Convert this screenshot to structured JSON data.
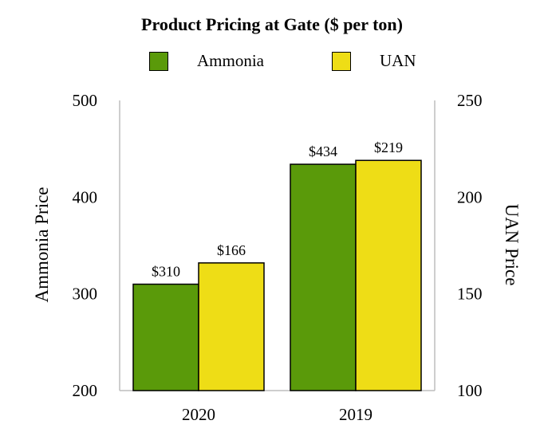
{
  "chart_data": {
    "type": "bar",
    "title": "Product Pricing at Gate ($ per ton)",
    "categories": [
      "2020",
      "2019"
    ],
    "series": [
      {
        "name": "Ammonia",
        "axis": "left",
        "color": "#5a9a0a",
        "values": [
          310,
          434
        ],
        "labels": [
          "$310",
          "$434"
        ]
      },
      {
        "name": "UAN",
        "axis": "right",
        "color": "#eedd16",
        "values": [
          166,
          219
        ],
        "labels": [
          "$166",
          "$219"
        ]
      }
    ],
    "ylabel_left": "Ammonia Price",
    "ylabel_right": "UAN Price",
    "ylim_left": [
      200,
      500
    ],
    "ylim_right": [
      100,
      250
    ],
    "yticks_left": [
      "500",
      "400",
      "300",
      "200"
    ],
    "yticks_right": [
      "250",
      "200",
      "150",
      "100"
    ],
    "legend_position": "top-center",
    "grid": false
  }
}
